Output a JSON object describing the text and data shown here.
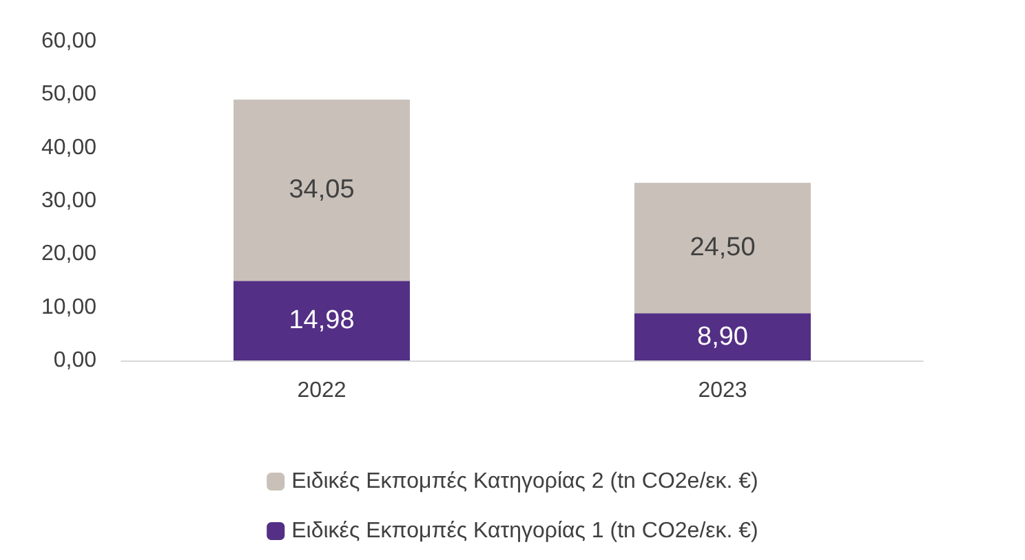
{
  "chart_data": {
    "type": "bar",
    "stacked": true,
    "categories": [
      "2022",
      "2023"
    ],
    "series": [
      {
        "name": "Ειδικές Εκπομπές Κατηγορίας 1 (tn CO2e/εκ. €)",
        "color": "#532f85",
        "values": [
          14.98,
          8.9
        ],
        "value_labels": [
          "14,98",
          "8,90"
        ]
      },
      {
        "name": "Ειδικές Εκπομπές Κατηγορίας 2 (tn CO2e/εκ. €)",
        "color": "#c9c1b9",
        "values": [
          34.05,
          24.5
        ],
        "value_labels": [
          "34,05",
          "24,50"
        ]
      }
    ],
    "ylim": [
      0,
      60
    ],
    "yticks": [
      {
        "value": 0,
        "label": "0,00"
      },
      {
        "value": 10,
        "label": "10,00"
      },
      {
        "value": 20,
        "label": "20,00"
      },
      {
        "value": 30,
        "label": "30,00"
      },
      {
        "value": 40,
        "label": "40,00"
      },
      {
        "value": 50,
        "label": "50,00"
      },
      {
        "value": 60,
        "label": "60,00"
      }
    ],
    "grid": false,
    "legend": "bottom"
  }
}
